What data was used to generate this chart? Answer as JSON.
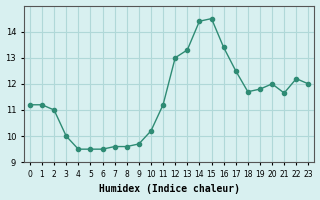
{
  "x": [
    0,
    1,
    2,
    3,
    4,
    5,
    6,
    7,
    8,
    9,
    10,
    11,
    12,
    13,
    14,
    15,
    16,
    17,
    18,
    19,
    20,
    21,
    22,
    23
  ],
  "y": [
    11.2,
    11.2,
    11.0,
    10.0,
    9.5,
    9.5,
    9.5,
    9.6,
    9.6,
    9.7,
    10.2,
    11.2,
    13.0,
    13.3,
    14.4,
    14.5,
    13.4,
    12.5,
    11.7,
    11.8,
    12.0,
    11.65,
    12.2,
    12.0
  ],
  "line_color": "#2e8b74",
  "marker": "o",
  "marker_size": 3,
  "bg_color": "#d8f0f0",
  "grid_color": "#b0d8d8",
  "xlabel": "Humidex (Indice chaleur)",
  "ylim": [
    9.0,
    15.0
  ],
  "xlim": [
    0,
    23
  ],
  "yticks": [
    9,
    10,
    11,
    12,
    13,
    14
  ],
  "xtick_labels": [
    "0",
    "1",
    "2",
    "3",
    "4",
    "5",
    "6",
    "7",
    "8",
    "9",
    "10",
    "11",
    "12",
    "13",
    "14",
    "15",
    "16",
    "17",
    "18",
    "19",
    "20",
    "21",
    "22",
    "23"
  ],
  "title_fontsize": 7,
  "label_fontsize": 7,
  "tick_fontsize": 6
}
